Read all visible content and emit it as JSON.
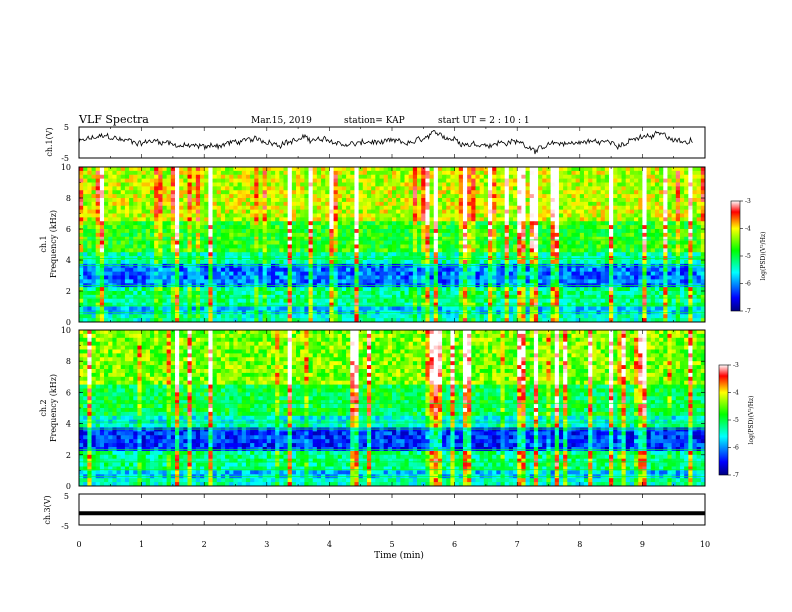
{
  "header": {
    "title": "VLF Spectra",
    "date": "Mar.15, 2019",
    "station": "station= KAP",
    "start": "start UT =  2 : 10 : 1"
  },
  "chart_data": [
    {
      "type": "line",
      "name": "ch1-waveform",
      "ylabel": "ch.1(V)",
      "ylim": [
        -5,
        5
      ],
      "yticks": [
        "5",
        "-5"
      ],
      "xlim": [
        0,
        10
      ],
      "note_values": "waveform amplitude approx between -3 and 3 V"
    },
    {
      "type": "heatmap",
      "name": "ch1-spectrogram",
      "ylabel": "ch.1 Frequency (kHz)",
      "ylabel_top": "ch.1",
      "ylabel_main": "Frequency (kHz)",
      "ylim": [
        0,
        10
      ],
      "yticks": [
        "0",
        "2",
        "4",
        "6",
        "8",
        "10"
      ],
      "xlim": [
        0,
        10
      ],
      "colorbar": {
        "label": "log(PSD)(V²/Hz)",
        "ticks": [
          "-3",
          "-4",
          "-5",
          "-6",
          "-7"
        ],
        "range": [
          -7,
          -3
        ]
      }
    },
    {
      "type": "heatmap",
      "name": "ch2-spectrogram",
      "ylabel": "ch.2 Frequency (kHz)",
      "ylabel_top": "ch.2",
      "ylabel_main": "Frequency (kHz)",
      "ylim": [
        0,
        10
      ],
      "yticks": [
        "0",
        "2",
        "4",
        "6",
        "8",
        "10"
      ],
      "xlim": [
        0,
        10
      ],
      "colorbar": {
        "label": "log(PSD)(V²/Hz)",
        "ticks": [
          "-3",
          "-4",
          "-5",
          "-6",
          "-7"
        ],
        "range": [
          -7,
          -3
        ]
      }
    },
    {
      "type": "line",
      "name": "ch3-waveform",
      "ylabel": "ch.3(V)",
      "ylim": [
        -5,
        5
      ],
      "yticks": [
        "5",
        "-5"
      ],
      "xlim": [
        0,
        10
      ],
      "xlabel": "Time (min)",
      "xticks": [
        "0",
        "1",
        "2",
        "3",
        "4",
        "5",
        "6",
        "7",
        "8",
        "9",
        "10"
      ],
      "constant_value": -1.2
    }
  ],
  "colors": {
    "axis": "#000000",
    "background": "#ffffff",
    "trace": "#000000"
  }
}
